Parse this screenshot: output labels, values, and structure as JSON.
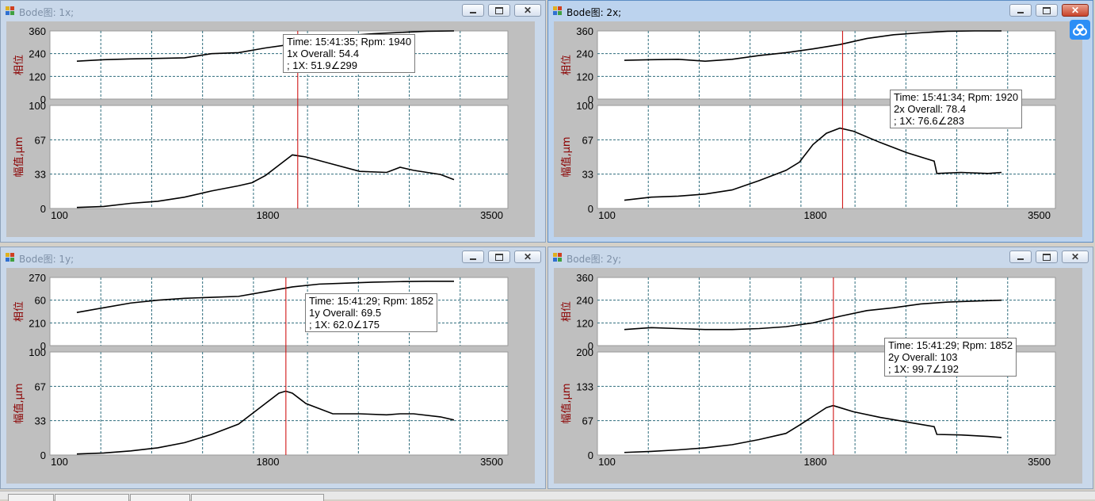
{
  "icons": {
    "window": "window-app-icon",
    "minimize": "minimize-icon",
    "maximize": "maximize-icon",
    "close": "close-icon",
    "badge": "cloud-badge-icon"
  },
  "colors": {
    "trace": "#000000",
    "cursor": "#cc0000",
    "grid": "#2e6c7c",
    "axis_label": "#8b0000",
    "plot_bg": "#ffffff",
    "frame": "#bfbfbf"
  },
  "windows": [
    {
      "title": "Bode图: 1x;",
      "active": false,
      "phase": {
        "label": "相位",
        "ticks": [
          "360",
          "240",
          "120",
          "0"
        ]
      },
      "amp": {
        "label": "幅值,μm",
        "ticks": [
          "100",
          "67",
          "33",
          "0"
        ],
        "max": 100
      },
      "x_ticks": [
        "100",
        "1800",
        "3500"
      ],
      "tooltip": {
        "line1": "Time: 15:41:35; Rpm: 1940",
        "line2": "1x Overall: 54.4",
        "line3": "; 1X: 51.9∠299"
      },
      "cursor_rpm": 1940
    },
    {
      "title": "Bode图: 2x;",
      "active": true,
      "phase": {
        "label": "相位",
        "ticks": [
          "360",
          "240",
          "120",
          "0"
        ]
      },
      "amp": {
        "label": "幅值,μm",
        "ticks": [
          "100",
          "67",
          "33",
          "0"
        ],
        "max": 100
      },
      "x_ticks": [
        "100",
        "1800",
        "3500"
      ],
      "tooltip": {
        "line1": "Time: 15:41:34; Rpm: 1920",
        "line2": "2x Overall: 78.4",
        "line3": "; 1X: 76.6∠283"
      },
      "cursor_rpm": 1920
    },
    {
      "title": "Bode图: 1y;",
      "active": false,
      "phase": {
        "label": "相位",
        "ticks": [
          "270",
          "60",
          "210",
          "0"
        ]
      },
      "amp": {
        "label": "幅值,μm",
        "ticks": [
          "100",
          "67",
          "33",
          "0"
        ],
        "max": 100
      },
      "x_ticks": [
        "100",
        "1800",
        "3500"
      ],
      "tooltip": {
        "line1": "Time: 15:41:29; Rpm: 1852",
        "line2": "1y Overall: 69.5",
        "line3": "; 1X: 62.0∠175"
      },
      "cursor_rpm": 1852
    },
    {
      "title": "Bode图: 2y;",
      "active": false,
      "phase": {
        "label": "相位",
        "ticks": [
          "360",
          "240",
          "120",
          "0"
        ]
      },
      "amp": {
        "label": "幅值,μm",
        "ticks": [
          "200",
          "133",
          "67",
          "0"
        ],
        "max": 200
      },
      "x_ticks": [
        "100",
        "1800",
        "3500"
      ],
      "tooltip": {
        "line1": "Time: 15:41:29; Rpm: 1852",
        "line2": "2y Overall: 103",
        "line3": "; 1X: 99.7∠192"
      },
      "cursor_rpm": 1852
    }
  ],
  "chart_data": [
    {
      "type": "line",
      "x_range": [
        100,
        3500
      ],
      "phase_range": [
        0,
        360
      ],
      "amp_range": [
        0,
        100
      ],
      "series": [
        {
          "name": "相位",
          "x": [
            300,
            500,
            700,
            900,
            1100,
            1300,
            1500,
            1700,
            1900,
            2100,
            2300,
            2500,
            2700,
            2900,
            3100
          ],
          "values": [
            200,
            208,
            212,
            215,
            218,
            240,
            245,
            270,
            290,
            320,
            335,
            345,
            352,
            358,
            362
          ]
        },
        {
          "name": "幅值,μm",
          "x": [
            300,
            500,
            700,
            900,
            1100,
            1300,
            1500,
            1600,
            1700,
            1800,
            1900,
            2000,
            2200,
            2400,
            2600,
            2700,
            2800,
            3000,
            3100
          ],
          "values": [
            1,
            2,
            5,
            7,
            11,
            17,
            22,
            25,
            32,
            42,
            52,
            50,
            43,
            36,
            35,
            40,
            37,
            33,
            28
          ]
        }
      ]
    },
    {
      "type": "line",
      "x_range": [
        100,
        3500
      ],
      "phase_range": [
        0,
        360
      ],
      "amp_range": [
        0,
        100
      ],
      "series": [
        {
          "name": "相位",
          "x": [
            300,
            500,
            700,
            900,
            1100,
            1300,
            1500,
            1700,
            1900,
            2100,
            2300,
            2500,
            2700,
            2900,
            3100
          ],
          "values": [
            205,
            208,
            210,
            200,
            210,
            230,
            245,
            265,
            288,
            320,
            340,
            350,
            358,
            362,
            365
          ]
        },
        {
          "name": "幅值,μm",
          "x": [
            300,
            500,
            700,
            900,
            1100,
            1300,
            1500,
            1600,
            1700,
            1800,
            1900,
            2000,
            2200,
            2400,
            2600,
            2620,
            2800,
            3000,
            3100
          ],
          "values": [
            8,
            11,
            12,
            14,
            18,
            27,
            37,
            45,
            62,
            73,
            78,
            75,
            64,
            54,
            46,
            34,
            35,
            34,
            35
          ]
        }
      ]
    },
    {
      "type": "line",
      "x_range": [
        100,
        3500
      ],
      "phase_range": [
        0,
        360
      ],
      "amp_range": [
        0,
        100
      ],
      "series": [
        {
          "name": "相位",
          "x": [
            300,
            500,
            700,
            900,
            1100,
            1300,
            1500,
            1700,
            1900,
            2100,
            2300,
            2500,
            2700,
            2900,
            3100
          ],
          "values": [
            175,
            200,
            225,
            240,
            250,
            255,
            260,
            285,
            310,
            325,
            330,
            335,
            338,
            340,
            340
          ]
        },
        {
          "name": "幅值,μm",
          "x": [
            300,
            500,
            700,
            900,
            1100,
            1300,
            1500,
            1600,
            1700,
            1800,
            1850,
            1900,
            2000,
            2200,
            2400,
            2600,
            2700,
            2800,
            3000,
            3100
          ],
          "values": [
            1,
            2,
            4,
            7,
            12,
            20,
            30,
            40,
            50,
            60,
            62,
            60,
            50,
            40,
            40,
            39,
            40,
            40,
            37,
            34
          ]
        }
      ]
    },
    {
      "type": "line",
      "x_range": [
        100,
        3500
      ],
      "phase_range": [
        0,
        360
      ],
      "amp_range": [
        0,
        200
      ],
      "series": [
        {
          "name": "相位",
          "x": [
            300,
            500,
            700,
            900,
            1100,
            1300,
            1500,
            1700,
            1900,
            2100,
            2300,
            2500,
            2700,
            2900,
            3100
          ],
          "values": [
            85,
            95,
            90,
            85,
            85,
            90,
            100,
            120,
            155,
            185,
            200,
            220,
            230,
            235,
            240
          ]
        },
        {
          "name": "幅值,μm",
          "x": [
            300,
            500,
            700,
            900,
            1100,
            1300,
            1500,
            1600,
            1700,
            1800,
            1850,
            1900,
            2000,
            2200,
            2400,
            2600,
            2620,
            2800,
            3000,
            3100
          ],
          "values": [
            5,
            7,
            10,
            14,
            20,
            30,
            42,
            58,
            75,
            92,
            96,
            92,
            84,
            73,
            64,
            55,
            40,
            39,
            36,
            34
          ]
        }
      ]
    }
  ]
}
